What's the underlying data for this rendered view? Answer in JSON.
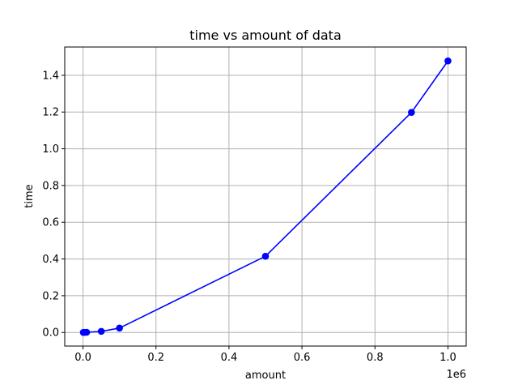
{
  "chart_data": {
    "type": "line",
    "title": "time vs amount of data",
    "xlabel": "amount",
    "ylabel": "time",
    "x_offset_label": "1e6",
    "xlim": [
      -50000,
      1050000
    ],
    "ylim": [
      -0.074,
      1.554
    ],
    "x_ticks": [
      0,
      200000,
      400000,
      600000,
      800000,
      1000000
    ],
    "x_tick_labels": [
      "0.0",
      "0.2",
      "0.4",
      "0.6",
      "0.8",
      "1.0"
    ],
    "y_ticks": [
      0.0,
      0.2,
      0.4,
      0.6,
      0.8,
      1.0,
      1.2,
      1.4
    ],
    "y_tick_labels": [
      "0.0",
      "0.2",
      "0.4",
      "0.6",
      "0.8",
      "1.0",
      "1.2",
      "1.4"
    ],
    "grid": true,
    "series": [
      {
        "color": "#0000ff",
        "marker": "circle",
        "x": [
          1000,
          5000,
          10000,
          50000,
          100000,
          500000,
          900000,
          1000000
        ],
        "y": [
          0.0,
          0.0005,
          0.001,
          0.006,
          0.024,
          0.415,
          1.198,
          1.478
        ]
      }
    ]
  }
}
